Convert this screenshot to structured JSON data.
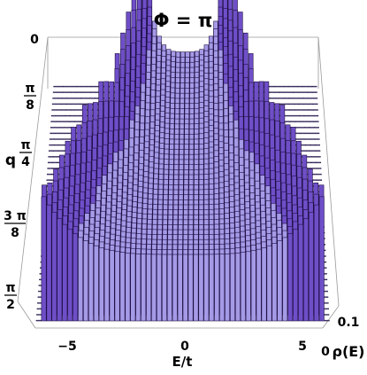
{
  "chart_data": {
    "type": "3d-bar",
    "title": "Φ = π",
    "xlabel": "E/t",
    "ylabel": "q",
    "zlabel": "ρ(E)",
    "x_ticks": [
      "−5",
      "0",
      "5"
    ],
    "x_tick_values": [
      -5,
      0,
      5
    ],
    "xlim": [
      -6.2,
      6.2
    ],
    "y_ticks": [
      {
        "num": "",
        "den": "",
        "label": "0"
      },
      {
        "num": "π",
        "den": "8",
        "label": ""
      },
      {
        "num": "π",
        "den": "4",
        "label": ""
      },
      {
        "num": "3 π",
        "den": "8",
        "label": ""
      },
      {
        "num": "π",
        "den": "2",
        "label": ""
      }
    ],
    "y_tick_values": [
      0,
      0.3927,
      0.7854,
      1.1781,
      1.5708
    ],
    "ylim": [
      0,
      1.5708
    ],
    "z_ticks": [
      "0",
      "0.1"
    ],
    "z_tick_values": [
      0,
      0.1
    ],
    "zlim": [
      0,
      0.16
    ],
    "band_edge_at_q": [
      {
        "q": 0.0,
        "edge": 2.0
      },
      {
        "q": 0.3927,
        "edge": 2.4
      },
      {
        "q": 0.7854,
        "edge": 3.2
      },
      {
        "q": 1.1781,
        "edge": 4.8
      },
      {
        "q": 1.5708,
        "edge": 6.0
      }
    ],
    "peak_density": 0.15,
    "colors": {
      "bar_top": "#6f4fc8",
      "bar_side": "#a59ae6",
      "bar_edge": "#1e0f44",
      "surface": "#c9c6ee"
    }
  }
}
